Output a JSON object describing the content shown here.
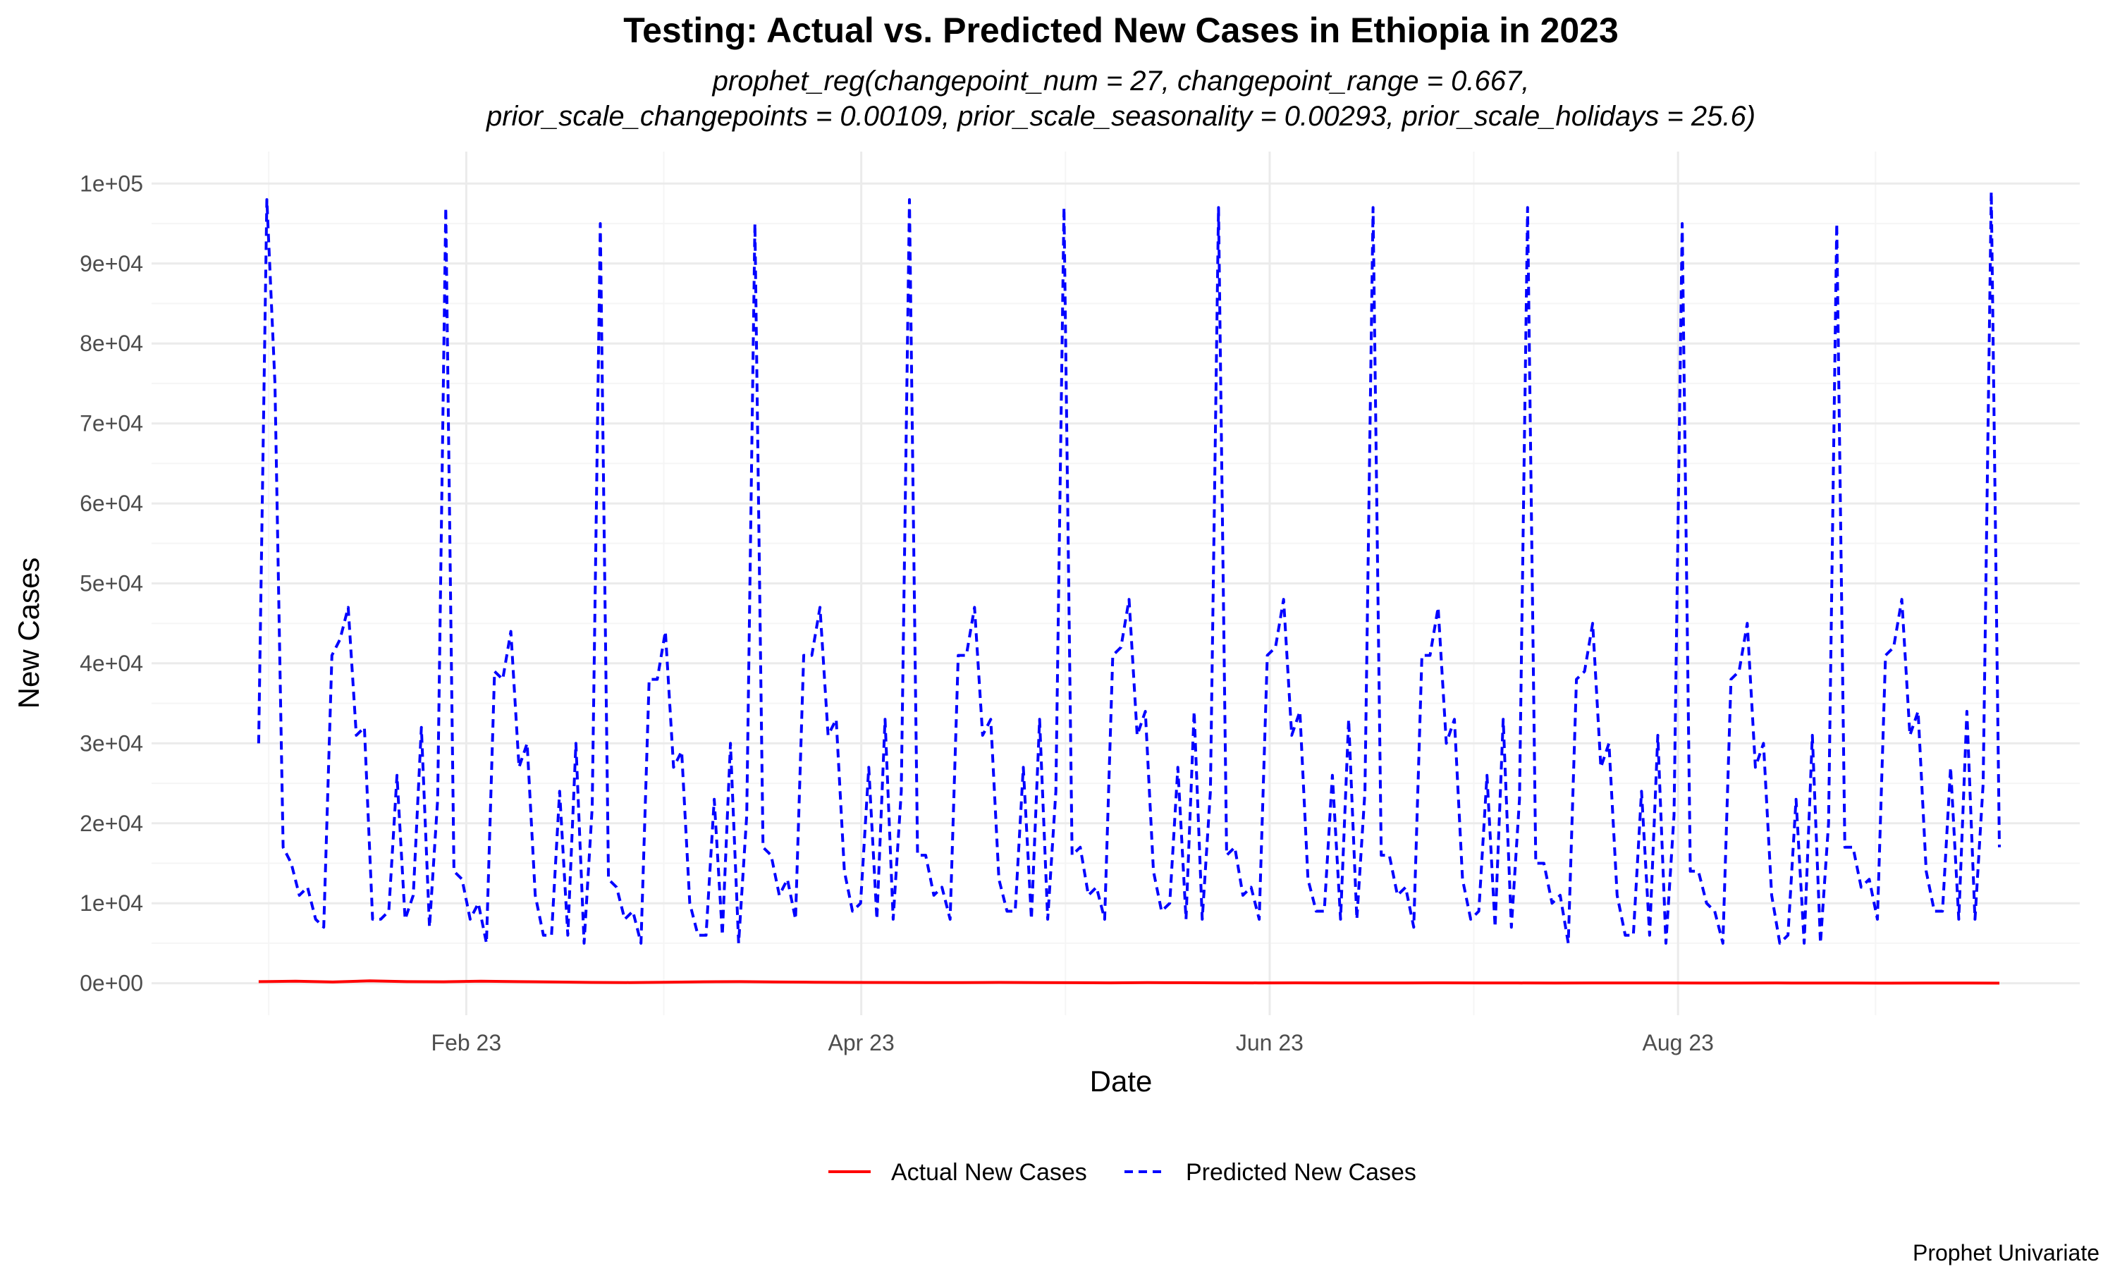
{
  "chart_data": {
    "type": "line",
    "title": "Testing: Actual vs. Predicted New Cases in Ethiopia in 2023",
    "subtitle_lines": [
      "prophet_reg(changepoint_num = 27, changepoint_range = 0.667,",
      "prior_scale_changepoints = 0.00109, prior_scale_seasonality = 0.00293, prior_scale_holidays = 25.6)"
    ],
    "xlabel": "Date",
    "ylabel": "New Cases",
    "caption": "Prophet Univariate",
    "x_range": [
      "2022-12-16",
      "2023-09-30"
    ],
    "ylim": [
      -4000,
      104000
    ],
    "x_ticks": [
      {
        "date": "2023-02-01",
        "label": "Feb 23"
      },
      {
        "date": "2023-04-01",
        "label": "Apr 23"
      },
      {
        "date": "2023-06-01",
        "label": "Jun 23"
      },
      {
        "date": "2023-08-01",
        "label": "Aug 23"
      }
    ],
    "y_ticks": [
      {
        "value": 0,
        "label": "0e+00"
      },
      {
        "value": 10000,
        "label": "1e+04"
      },
      {
        "value": 20000,
        "label": "2e+04"
      },
      {
        "value": 30000,
        "label": "3e+04"
      },
      {
        "value": 40000,
        "label": "4e+04"
      },
      {
        "value": 50000,
        "label": "5e+04"
      },
      {
        "value": 60000,
        "label": "6e+04"
      },
      {
        "value": 70000,
        "label": "7e+04"
      },
      {
        "value": 80000,
        "label": "8e+04"
      },
      {
        "value": 90000,
        "label": "9e+04"
      },
      {
        "value": 100000,
        "label": "1e+05"
      }
    ],
    "grid": true,
    "legend_position": "bottom",
    "series": [
      {
        "name": "Actual New Cases",
        "color": "#ff0000",
        "line_style": "solid",
        "start_date": "2023-01-01",
        "end_date": "2023-09-18",
        "values": [
          200,
          250,
          150,
          300,
          200,
          180,
          250,
          200,
          150,
          100,
          80,
          120,
          180,
          200,
          150,
          130,
          100,
          90,
          80,
          70,
          100,
          80,
          60,
          50,
          70,
          60,
          50,
          40,
          50,
          40,
          30,
          40,
          50,
          40,
          30,
          20,
          30,
          40,
          30,
          20,
          20,
          30,
          20,
          20,
          10,
          20,
          20,
          10
        ]
      },
      {
        "name": "Predicted New Cases",
        "color": "#0000ff",
        "line_style": "dashed",
        "start_date": "2023-01-01",
        "end_date": "2023-09-18",
        "values": [
          30000,
          98000,
          75000,
          17000,
          15000,
          11000,
          12000,
          8000,
          7000,
          41000,
          43000,
          47000,
          31000,
          32000,
          8000,
          8000,
          9000,
          26000,
          8000,
          11000,
          32000,
          7000,
          23000,
          97000,
          14000,
          13000,
          8000,
          10000,
          5000,
          39000,
          38000,
          44000,
          27000,
          30000,
          11000,
          6000,
          6000,
          24000,
          6000,
          30000,
          5000,
          22000,
          95000,
          13000,
          12000,
          8000,
          9000,
          5000,
          38000,
          38000,
          44000,
          27000,
          29000,
          10000,
          6000,
          6000,
          23000,
          6000,
          30000,
          5000,
          21000,
          95000,
          17000,
          16000,
          11000,
          13000,
          8000,
          41000,
          41000,
          47000,
          31000,
          33000,
          14000,
          9000,
          10000,
          27000,
          8000,
          33000,
          8000,
          24000,
          98000,
          16000,
          16000,
          11000,
          12000,
          8000,
          41000,
          41000,
          47000,
          31000,
          33000,
          13000,
          9000,
          9000,
          27000,
          8000,
          33000,
          8000,
          24000,
          97000,
          16000,
          17000,
          11000,
          12000,
          8000,
          41000,
          42000,
          48000,
          31000,
          34000,
          14000,
          9000,
          10000,
          27000,
          8000,
          34000,
          8000,
          24000,
          97000,
          16000,
          17000,
          11000,
          12000,
          8000,
          41000,
          42000,
          48000,
          31000,
          34000,
          13000,
          9000,
          9000,
          26000,
          8000,
          33000,
          8000,
          24000,
          97000,
          16000,
          16000,
          11000,
          12000,
          7000,
          41000,
          41000,
          47000,
          30000,
          33000,
          13000,
          8000,
          9000,
          26000,
          7000,
          33000,
          7000,
          23000,
          97000,
          15000,
          15000,
          10000,
          11000,
          5000,
          38000,
          39000,
          45000,
          27000,
          30000,
          11000,
          6000,
          6000,
          24000,
          6000,
          31000,
          5000,
          21000,
          95000,
          14000,
          14000,
          10000,
          9000,
          5000,
          38000,
          39000,
          45000,
          27000,
          30000,
          11000,
          5000,
          6000,
          23000,
          5000,
          31000,
          5000,
          20000,
          95000,
          17000,
          17000,
          12000,
          13000,
          8000,
          41000,
          42000,
          48000,
          31000,
          34000,
          14000,
          9000,
          9000,
          27000,
          8000,
          34000,
          8000,
          25000,
          99000,
          17000
        ]
      }
    ]
  }
}
